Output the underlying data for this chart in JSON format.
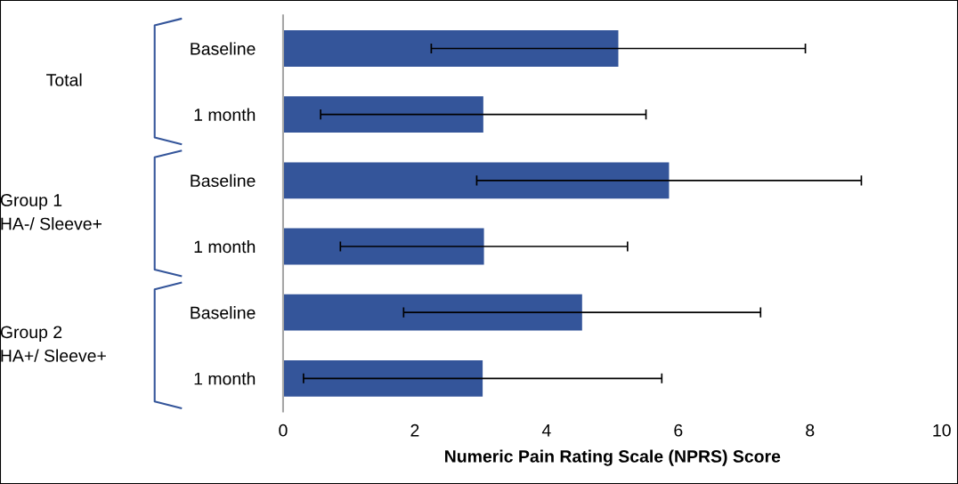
{
  "chart_data": {
    "type": "bar",
    "orientation": "horizontal",
    "xlabel": "Numeric Pain Rating Scale (NPRS) Score",
    "categories": [
      "Baseline",
      "1 month",
      "Baseline",
      "1 month",
      "Baseline",
      "1 month"
    ],
    "values": [
      5.09,
      3.04,
      5.86,
      3.05,
      4.54,
      3.03
    ],
    "errors": [
      2.84,
      2.47,
      2.92,
      2.18,
      2.71,
      2.72
    ],
    "color": "#34559a",
    "xlim": [
      0,
      10
    ],
    "xticks": [
      0,
      2,
      4,
      6,
      8,
      10
    ],
    "grid": false,
    "annotations": [
      "Total",
      "Group 1\nHA-/ Sleeve+",
      "Group 2\nHA+/ Sleeve+"
    ]
  }
}
